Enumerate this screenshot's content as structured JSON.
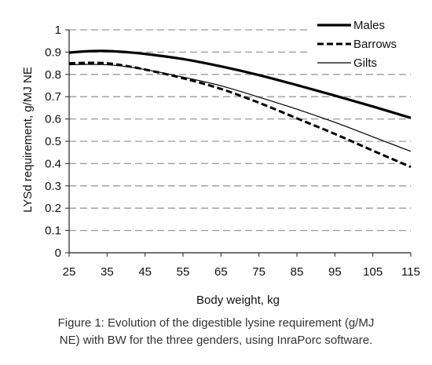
{
  "chart_data": {
    "type": "line",
    "xlabel": "Body weight, kg",
    "ylabel": "LYSd requirement, g/MJ NE",
    "xlim": [
      25,
      115
    ],
    "ylim": [
      0,
      1
    ],
    "xticks": [
      "25",
      "35",
      "45",
      "55",
      "65",
      "75",
      "85",
      "95",
      "105",
      "115"
    ],
    "yticks": [
      "0",
      "0.1",
      "0.2",
      "0.3",
      "0.4",
      "0.5",
      "0.6",
      "0.7",
      "0.8",
      "0.9",
      "1"
    ],
    "grid": "horizontal dashed",
    "legend_position": "top-right",
    "x": [
      25,
      30,
      35,
      40,
      45,
      55,
      65,
      75,
      85,
      95,
      105,
      115
    ],
    "series": [
      {
        "name": "Males",
        "style": "thick-solid",
        "values": [
          0.898,
          0.904,
          0.905,
          0.9,
          0.892,
          0.869,
          0.836,
          0.797,
          0.752,
          0.705,
          0.656,
          0.605
        ]
      },
      {
        "name": "Barrows",
        "style": "dashed",
        "values": [
          0.85,
          0.852,
          0.85,
          0.838,
          0.822,
          0.783,
          0.735,
          0.673,
          0.603,
          0.533,
          0.458,
          0.385
        ]
      },
      {
        "name": "Gilts",
        "style": "thin-solid",
        "values": [
          0.843,
          0.845,
          0.843,
          0.835,
          0.822,
          0.788,
          0.749,
          0.698,
          0.644,
          0.585,
          0.52,
          0.455
        ]
      }
    ]
  },
  "caption": {
    "line1": "Figure 1: Evolution of the digestible lysine requirement (g/MJ",
    "line2": "NE) with BW for the three genders, using InraPorc software."
  }
}
